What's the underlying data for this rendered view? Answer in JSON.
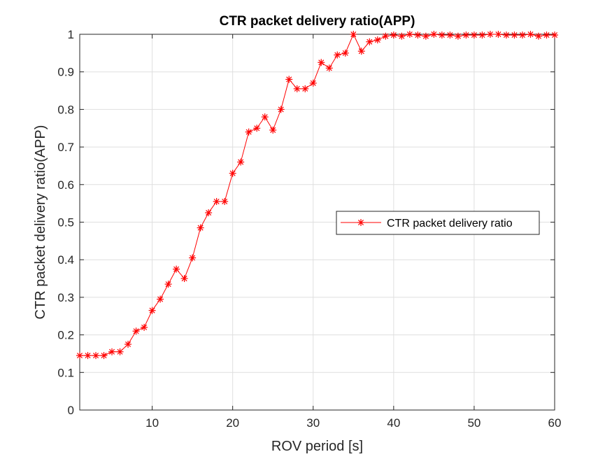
{
  "chart_data": {
    "type": "line",
    "title": "CTR packet delivery ratio(APP)",
    "xlabel": "ROV period [s]",
    "ylabel": "CTR packet delivery ratio(APP)",
    "xlim": [
      1,
      60
    ],
    "ylim": [
      0,
      1
    ],
    "xticks": [
      "10",
      "20",
      "30",
      "40",
      "50",
      "60"
    ],
    "yticks": [
      "0",
      "0.1",
      "0.2",
      "0.3",
      "0.4",
      "0.5",
      "0.6",
      "0.7",
      "0.8",
      "0.9",
      "1"
    ],
    "grid": true,
    "legend_position": "right",
    "series": [
      {
        "name": "CTR packet delivery ratio",
        "color": "#ff0000",
        "marker": "asterisk",
        "x": [
          1,
          2,
          3,
          4,
          5,
          6,
          7,
          8,
          9,
          10,
          11,
          12,
          13,
          14,
          15,
          16,
          17,
          18,
          19,
          20,
          21,
          22,
          23,
          24,
          25,
          26,
          27,
          28,
          29,
          30,
          31,
          32,
          33,
          34,
          35,
          36,
          37,
          38,
          39,
          40,
          41,
          42,
          43,
          44,
          45,
          46,
          47,
          48,
          49,
          50,
          51,
          52,
          53,
          54,
          55,
          56,
          57,
          58,
          59,
          60
        ],
        "y": [
          0.145,
          0.145,
          0.145,
          0.145,
          0.155,
          0.155,
          0.175,
          0.21,
          0.22,
          0.265,
          0.295,
          0.335,
          0.375,
          0.35,
          0.405,
          0.485,
          0.525,
          0.555,
          0.555,
          0.63,
          0.66,
          0.74,
          0.75,
          0.78,
          0.745,
          0.8,
          0.88,
          0.855,
          0.855,
          0.87,
          0.925,
          0.91,
          0.945,
          0.95,
          1.0,
          0.955,
          0.98,
          0.985,
          0.995,
          0.998,
          0.995,
          1.0,
          0.998,
          0.995,
          1.0,
          0.998,
          0.998,
          0.995,
          0.998,
          0.998,
          0.998,
          1.0,
          1.0,
          0.998,
          0.998,
          0.998,
          1.0,
          0.995,
          0.998,
          0.998
        ]
      }
    ]
  }
}
